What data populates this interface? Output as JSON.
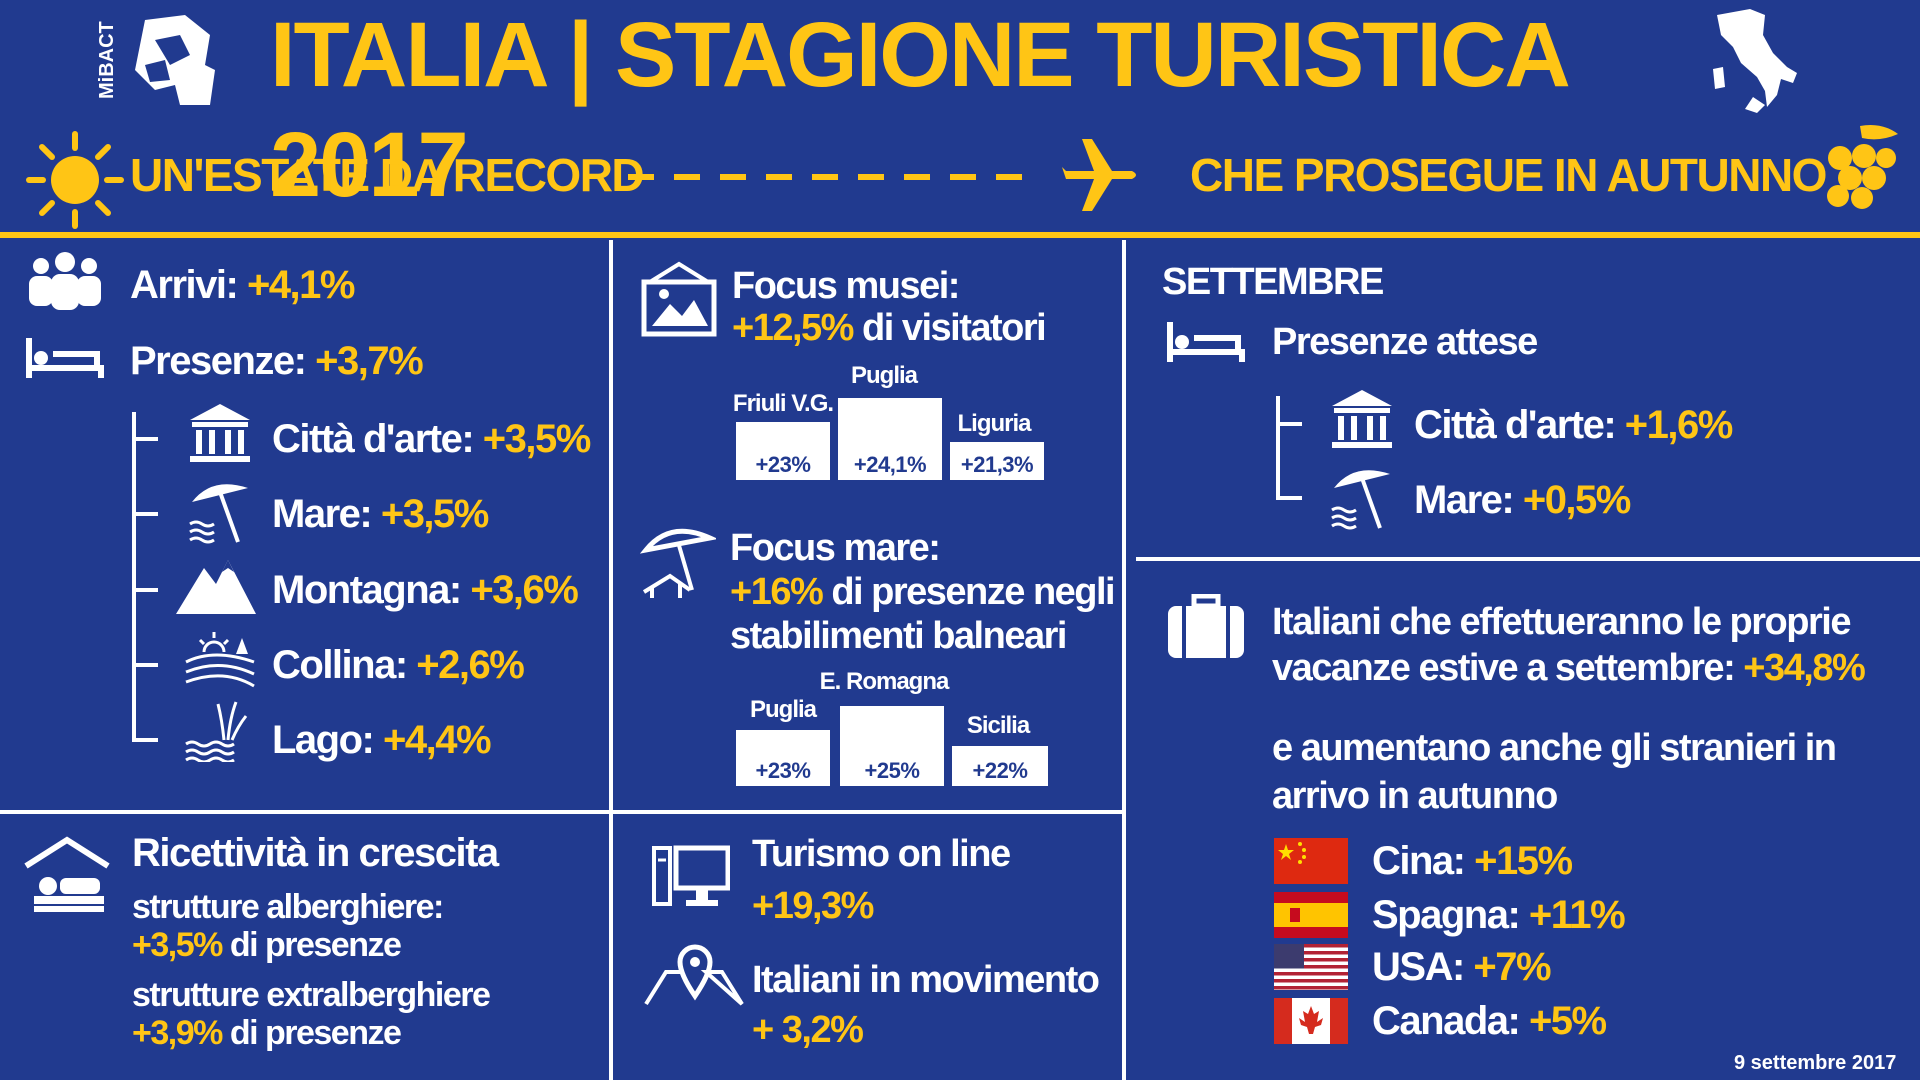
{
  "header": {
    "logo_text": "MiBACT",
    "title": "ITALIA | STAGIONE TURISTICA 2017",
    "left_banner": "UN'ESTATE DA RECORD",
    "right_banner": "CHE PROSEGUE IN AUTUNNO"
  },
  "summer": {
    "arrivi_label": "Arrivi:",
    "arrivi_value": "+4,1%",
    "presenze_label": "Presenze:",
    "presenze_value": "+3,7%",
    "items": [
      {
        "label": "Città d'arte:",
        "value": "+3,5%",
        "icon": "temple-icon"
      },
      {
        "label": "Mare:",
        "value": "+3,5%",
        "icon": "beach-umbrella-icon"
      },
      {
        "label": "Montagna:",
        "value": "+3,6%",
        "icon": "mountain-icon"
      },
      {
        "label": "Collina:",
        "value": "+2,6%",
        "icon": "hill-icon"
      },
      {
        "label": "Lago:",
        "value": "+4,4%",
        "icon": "lake-icon"
      }
    ]
  },
  "ricettivita": {
    "title": "Ricettività in crescita",
    "alb_label": "strutture alberghiere:",
    "alb_value": "+3,5%",
    "alb_suffix": "di presenze",
    "extra_label": "strutture extralberghiere",
    "extra_value": "+3,9%",
    "extra_suffix": "di presenze"
  },
  "musei": {
    "title": "Focus musei:",
    "value": "+12,5%",
    "suffix": "di visitatori",
    "bars": [
      {
        "label": "Friuli V.G.",
        "value": "+23%"
      },
      {
        "label": "Puglia",
        "value": "+24,1%"
      },
      {
        "label": "Liguria",
        "value": "+21,3%"
      }
    ]
  },
  "mare": {
    "title": "Focus mare:",
    "value": "+16%",
    "suffix": "di presenze negli",
    "line2": "stabilimenti balneari",
    "bars": [
      {
        "label": "Puglia",
        "value": "+23%"
      },
      {
        "label": "E. Romagna",
        "value": "+25%"
      },
      {
        "label": "Sicilia",
        "value": "+22%"
      }
    ]
  },
  "online": {
    "title": "Turismo on line",
    "value": "+19,3%",
    "mov_title": "Italiani in movimento",
    "mov_value": "+ 3,2%"
  },
  "settembre": {
    "title": "SETTEMBRE",
    "presenze_label": "Presenze attese",
    "items": [
      {
        "label": "Città d'arte:",
        "value": "+1,6%"
      },
      {
        "label": "Mare:",
        "value": "+0,5%"
      }
    ],
    "italiani_line1": "Italiani che effettueranno le proprie",
    "italiani_line2": "vacanze estive a settembre:",
    "italiani_value": "+34,8%",
    "stranieri_line1": "e aumentano anche gli stranieri in",
    "stranieri_line2": "arrivo in autunno",
    "countries": [
      {
        "label": "Cina:",
        "value": "+15%"
      },
      {
        "label": "Spagna:",
        "value": "+11%"
      },
      {
        "label": "USA:",
        "value": "+7%"
      },
      {
        "label": "Canada:",
        "value": "+5%"
      }
    ],
    "date": "9 settembre 2017"
  },
  "colors": {
    "background": "#213a8f",
    "accent": "#ffc515",
    "text": "#ffffff"
  }
}
